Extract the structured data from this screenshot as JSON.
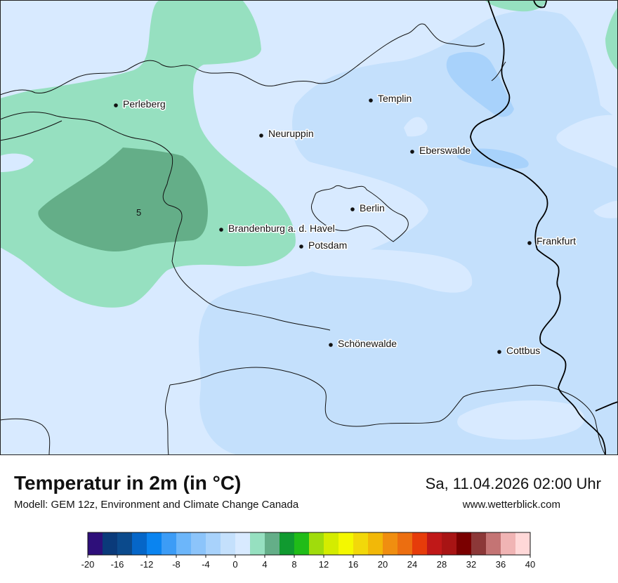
{
  "map": {
    "contour_label": "5",
    "cities": [
      {
        "name": "Perleberg",
        "id": "perleberg"
      },
      {
        "name": "Templin",
        "id": "templin"
      },
      {
        "name": "Neuruppin",
        "id": "neuruppin"
      },
      {
        "name": "Eberswalde",
        "id": "eberswalde"
      },
      {
        "name": "Berlin",
        "id": "berlin"
      },
      {
        "name": "Brandenburg a. d. Havel",
        "id": "brandenburg"
      },
      {
        "name": "Potsdam",
        "id": "potsdam"
      },
      {
        "name": "Frankfurt",
        "id": "frankfurt"
      },
      {
        "name": "Schönewalde",
        "id": "schoenewalde"
      },
      {
        "name": "Cottbus",
        "id": "cottbus"
      }
    ]
  },
  "footer": {
    "title": "Temperatur in 2m (in °C)",
    "subtitle": "Modell: GEM 12z, Environment and Climate Change Canada",
    "datetime": "Sa, 11.04.2026 02:00 Uhr",
    "website": "www.wetterblick.com"
  },
  "legend": {
    "colors": [
      "#2e0f7a",
      "#0a3a7a",
      "#0b4a8c",
      "#0566c8",
      "#0a84f0",
      "#3c9cf6",
      "#6cb6fa",
      "#8cc4fa",
      "#a8d2fb",
      "#c4e0fc",
      "#d8eaff",
      "#96e0c0",
      "#64ae88",
      "#109a30",
      "#20bc18",
      "#a0dc0c",
      "#d4ec00",
      "#f4f800",
      "#f2d80a",
      "#f2b808",
      "#f08e10",
      "#ec6e10",
      "#e63c0a",
      "#c01818",
      "#a81414",
      "#7a0000",
      "#8c3838",
      "#c47474",
      "#f0b4b4",
      "#ffd8d8"
    ],
    "tick_labels": [
      "-20",
      "-16",
      "-12",
      "-8",
      "-4",
      "0",
      "4",
      "8",
      "12",
      "16",
      "20",
      "24",
      "28",
      "32",
      "36",
      "40"
    ]
  }
}
